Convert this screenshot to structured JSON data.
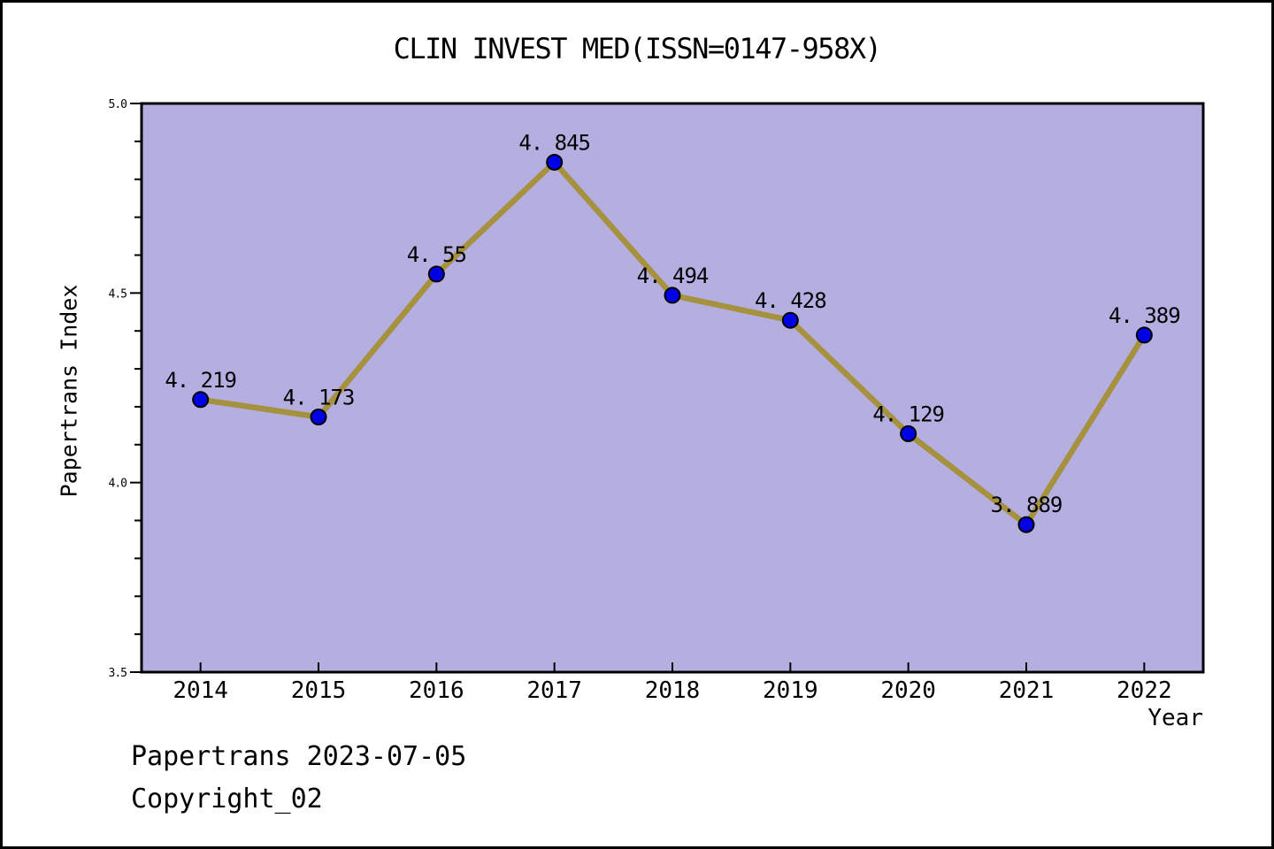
{
  "title": "CLIN INVEST MED(ISSN=0147-958X)",
  "footer": {
    "line1": "Papertrans 2023-07-05",
    "line2": "Copyright_02"
  },
  "colors": {
    "plot_bg": "#b4aee1",
    "line": "#a6913e",
    "marker": "#0000e6",
    "marker_edge": "#000000",
    "border": "#000000",
    "text": "#000000"
  },
  "chart_data": {
    "type": "line",
    "title": "CLIN INVEST MED(ISSN=0147-958X)",
    "categories": [
      "2014",
      "2015",
      "2016",
      "2017",
      "2018",
      "2019",
      "2020",
      "2021",
      "2022"
    ],
    "values": [
      4.219,
      4.173,
      4.55,
      4.845,
      4.494,
      4.428,
      4.129,
      3.889,
      4.389
    ],
    "point_labels": [
      "4. 219",
      "4. 173",
      "4. 55",
      "4. 845",
      "4. 494",
      "4. 428",
      "4. 129",
      "3. 889",
      "4. 389"
    ],
    "xlabel": "Year",
    "ylabel": "Papertrans Index",
    "ylim": [
      3.5,
      5.0
    ],
    "yticks": [
      {
        "value": 5.0,
        "label": "5.0"
      },
      {
        "value": 4.5,
        "label": "4.5"
      },
      {
        "value": 4.0,
        "label": "4.0"
      },
      {
        "value": 3.5,
        "label": "3.5"
      }
    ],
    "y_minor_step": 0.1,
    "grid": false,
    "legend": "none",
    "marker": "circle"
  }
}
